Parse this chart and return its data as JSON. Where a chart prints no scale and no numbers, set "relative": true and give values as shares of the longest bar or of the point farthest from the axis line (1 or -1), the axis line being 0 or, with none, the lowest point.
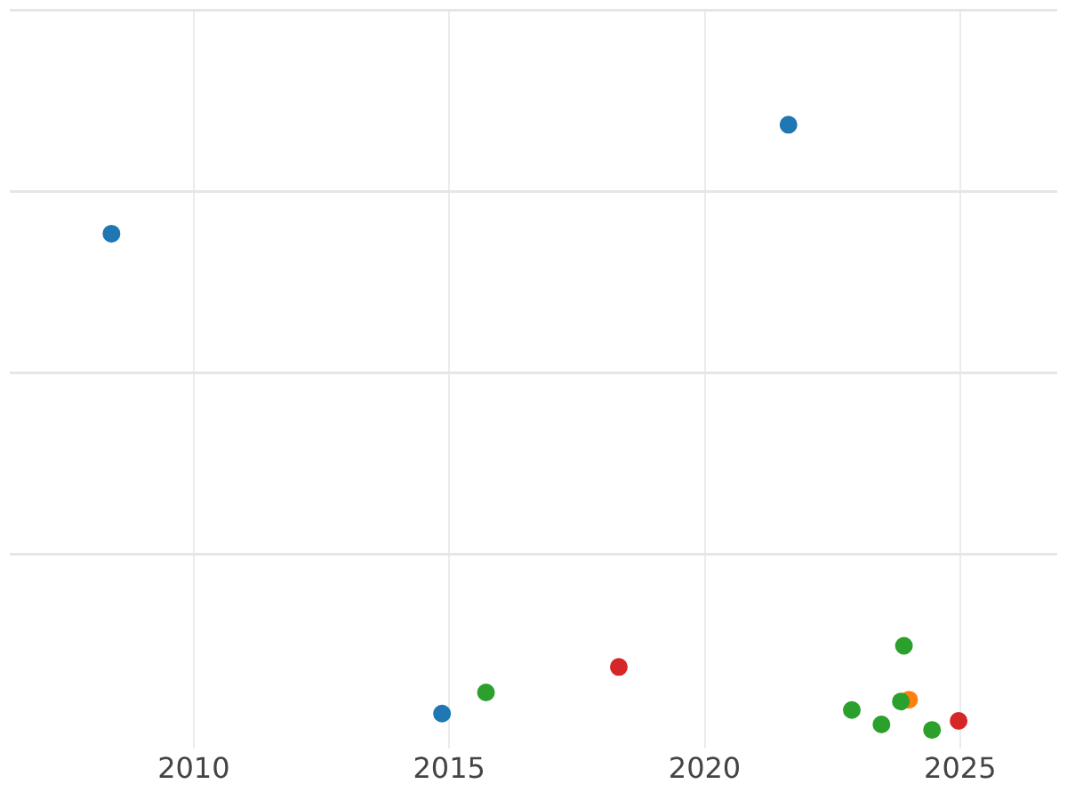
{
  "chart_data": {
    "type": "scatter",
    "relative": true,
    "xlim": [
      2006.4,
      2026.9
    ],
    "xticks": [
      2010,
      2015,
      2020,
      2025
    ],
    "grid": true,
    "legend": false,
    "marker": "circle",
    "series": [
      {
        "color": "#1f77b4",
        "x": [
          2008.39,
          2021.64,
          2014.86
        ],
        "values": [
          0.82,
          1.0,
          0.027
        ]
      },
      {
        "color": "#2ca02c",
        "x": [
          2015.72,
          2022.88,
          2023.46,
          2023.9,
          2023.84,
          2024.45
        ],
        "values": [
          0.062,
          0.033,
          0.009,
          0.139,
          0.047,
          0
        ]
      },
      {
        "color": "#d62728",
        "x": [
          2018.32,
          2024.97
        ],
        "values": [
          0.104,
          0.015
        ]
      },
      {
        "color": "#ff7f0e",
        "x": [
          2024.0
        ],
        "values": [
          0.05
        ]
      }
    ]
  }
}
